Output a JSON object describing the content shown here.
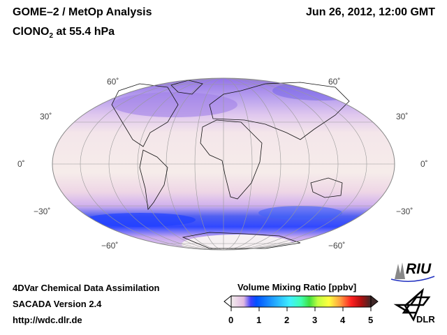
{
  "header": {
    "title": "GOME–2 / MetOp Analysis",
    "species": "ClONO",
    "species_sub": "2",
    "level": " at 55.4 hPa",
    "datetime": "Jun 26, 2012, 12:00 GMT"
  },
  "map": {
    "lat_labels": [
      "60˚",
      "30˚",
      "0˚",
      "−30˚",
      "−60˚"
    ]
  },
  "footer": {
    "line1": "4DVar Chemical Data Assimilation",
    "line2": "SACADA Version 2.4",
    "line3": "http://wdc.dlr.de"
  },
  "colorbar": {
    "title": "Volume Mixing Ratio [ppbv]",
    "ticks": [
      "0",
      "1",
      "2",
      "3",
      "4",
      "5"
    ],
    "range": [
      0,
      5
    ],
    "colors": [
      "#f4eeee",
      "#e0b8e0",
      "#4040ff",
      "#0060ff",
      "#40d0ff",
      "#40ffb0",
      "#40e040",
      "#ffff40",
      "#ffa040",
      "#ff2020",
      "#c01010",
      "#402020"
    ]
  },
  "logos": {
    "riu": "RIU",
    "dlr": "DLR"
  }
}
